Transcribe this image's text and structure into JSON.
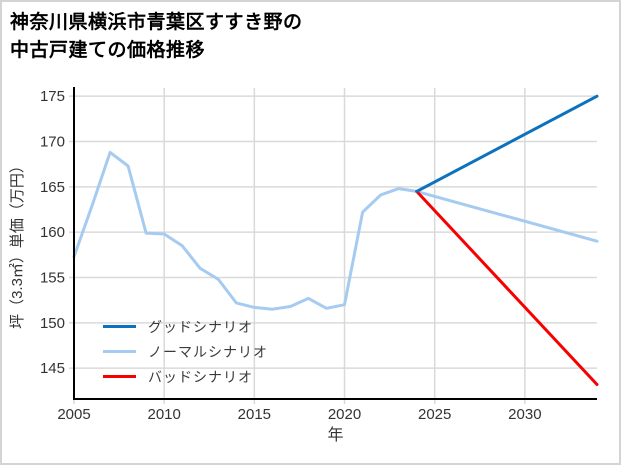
{
  "page": {
    "background": "#ffffff",
    "border_color": "#d4d4d4"
  },
  "title": {
    "line1": "神奈川県横浜市青葉区すすき野の",
    "line2": "中古戸建ての価格推移"
  },
  "chart_data": {
    "type": "line",
    "title": "神奈川県横浜市青葉区すすき野の中古戸建ての価格推移",
    "xlabel": "年",
    "ylabel": "坪（3.3㎡）単価（万円）",
    "xlim": [
      2005,
      2034
    ],
    "ylim": [
      141.6,
      175.9
    ],
    "x_ticks": [
      2005,
      2010,
      2015,
      2020,
      2025,
      2030
    ],
    "y_ticks": [
      145,
      150,
      155,
      160,
      165,
      170,
      175
    ],
    "grid": true,
    "legend_position": "lower-left",
    "axis_color": "#000000",
    "grid_color": "#d9d9d9",
    "tick_label_color": "#333333",
    "series": [
      {
        "name": "グッドシナリオ",
        "role": "good-scenario-forecast",
        "color": "#0d72bd",
        "x": [
          2024,
          2034
        ],
        "values": [
          164.5,
          175.0
        ]
      },
      {
        "name": "ノーマルシナリオ",
        "role": "history-and-normal-forecast",
        "color": "#a6cbf1",
        "x": [
          2005,
          2006,
          2007,
          2008,
          2009,
          2010,
          2011,
          2012,
          2013,
          2014,
          2015,
          2016,
          2017,
          2018,
          2019,
          2020,
          2021,
          2022,
          2023,
          2024,
          2034
        ],
        "values": [
          157.3,
          162.9,
          168.8,
          167.3,
          159.9,
          159.8,
          158.5,
          156.0,
          154.8,
          152.2,
          151.7,
          151.5,
          151.8,
          152.7,
          151.6,
          152.0,
          162.2,
          164.1,
          164.8,
          164.5,
          159.0
        ]
      },
      {
        "name": "バッドシナリオ",
        "role": "bad-scenario-forecast",
        "color": "#f60000",
        "x": [
          2024,
          2034
        ],
        "values": [
          164.5,
          143.2
        ]
      }
    ]
  }
}
